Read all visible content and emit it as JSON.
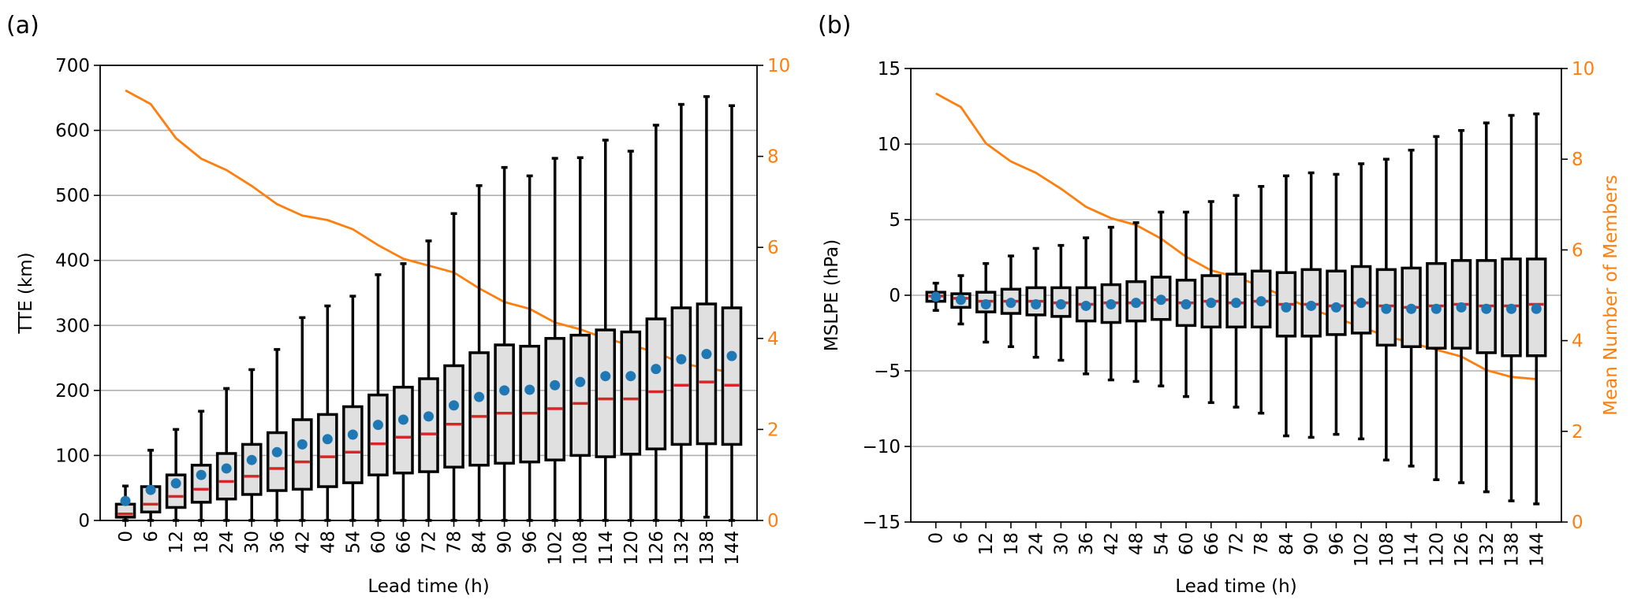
{
  "colors": {
    "box_fill": "#e0e0e0",
    "box_edge": "#000000",
    "median": "#d62728",
    "mean_marker": "#1f77b4",
    "members_line": "#ff7f0e",
    "grid": "#b0b0b0"
  },
  "chart_data": [
    {
      "type": "box",
      "panel_label": "(a)",
      "xlabel": "Lead time (h)",
      "ylabel": "TTE (km)",
      "y2label": "",
      "ylim": [
        0,
        700
      ],
      "yticks": [
        0,
        100,
        200,
        300,
        400,
        500,
        600,
        700
      ],
      "y2lim": [
        0,
        10
      ],
      "y2ticks": [
        0,
        2,
        4,
        6,
        8,
        10
      ],
      "grid": "horizontal",
      "categories": [
        "0",
        "6",
        "12",
        "18",
        "24",
        "30",
        "36",
        "42",
        "48",
        "54",
        "60",
        "66",
        "72",
        "78",
        "84",
        "90",
        "96",
        "102",
        "108",
        "114",
        "120",
        "126",
        "132",
        "138",
        "144"
      ],
      "whisker_low": [
        0,
        0,
        0,
        0,
        0,
        0,
        0,
        0,
        0,
        0,
        0,
        0,
        0,
        0,
        0,
        0,
        0,
        0,
        0,
        0,
        0,
        0,
        0,
        5,
        0
      ],
      "q1": [
        5,
        13,
        20,
        28,
        33,
        40,
        46,
        48,
        52,
        58,
        70,
        73,
        75,
        82,
        85,
        88,
        90,
        93,
        100,
        98,
        102,
        110,
        117,
        118,
        117
      ],
      "median": [
        10,
        25,
        37,
        48,
        60,
        68,
        80,
        90,
        98,
        105,
        118,
        128,
        133,
        148,
        160,
        165,
        165,
        172,
        180,
        187,
        187,
        198,
        208,
        213,
        208
      ],
      "q3": [
        25,
        52,
        70,
        85,
        103,
        117,
        135,
        155,
        163,
        175,
        193,
        205,
        218,
        238,
        258,
        270,
        268,
        280,
        285,
        293,
        290,
        310,
        327,
        333,
        327
      ],
      "whisker_high": [
        53,
        108,
        140,
        168,
        203,
        232,
        263,
        312,
        330,
        345,
        378,
        395,
        430,
        472,
        515,
        543,
        530,
        557,
        558,
        585,
        568,
        608,
        640,
        652,
        638
      ],
      "mean": [
        30,
        47,
        57,
        70,
        80,
        93,
        105,
        117,
        125,
        132,
        147,
        155,
        160,
        177,
        190,
        200,
        201,
        208,
        213,
        222,
        222,
        233,
        248,
        256,
        253
      ],
      "members": [
        9.45,
        9.15,
        8.4,
        7.95,
        7.7,
        7.35,
        6.95,
        6.7,
        6.6,
        6.4,
        6.05,
        5.75,
        5.6,
        5.45,
        5.1,
        4.8,
        4.65,
        4.35,
        4.2,
        4.0,
        3.85,
        3.7,
        3.45,
        3.35,
        3.25
      ]
    },
    {
      "type": "box",
      "panel_label": "(b)",
      "xlabel": "Lead time (h)",
      "ylabel": "MSLPE (hPa)",
      "y2label": "Mean Number of Members",
      "ylim": [
        -15,
        15
      ],
      "yticks": [
        -15,
        -10,
        -5,
        0,
        5,
        10,
        15
      ],
      "y2lim": [
        0,
        10
      ],
      "y2ticks": [
        0,
        2,
        4,
        6,
        8,
        10
      ],
      "grid": "horizontal",
      "categories": [
        "0",
        "6",
        "12",
        "18",
        "24",
        "30",
        "36",
        "42",
        "48",
        "54",
        "60",
        "66",
        "72",
        "78",
        "84",
        "90",
        "96",
        "102",
        "108",
        "114",
        "120",
        "126",
        "132",
        "138",
        "144"
      ],
      "whisker_low": [
        -1.0,
        -1.9,
        -3.1,
        -3.4,
        -4.1,
        -4.3,
        -5.2,
        -5.6,
        -5.7,
        -6.0,
        -6.7,
        -7.1,
        -7.4,
        -7.8,
        -9.3,
        -9.4,
        -9.2,
        -9.5,
        -10.9,
        -11.3,
        -12.2,
        -12.4,
        -13.0,
        -13.6,
        -13.8
      ],
      "q1": [
        -0.4,
        -0.8,
        -1.1,
        -1.2,
        -1.3,
        -1.4,
        -1.7,
        -1.8,
        -1.7,
        -1.6,
        -2.0,
        -2.1,
        -2.1,
        -2.1,
        -2.7,
        -2.7,
        -2.6,
        -2.5,
        -3.3,
        -3.4,
        -3.5,
        -3.5,
        -3.8,
        -4.0,
        -4.0
      ],
      "median": [
        -0.05,
        -0.2,
        -0.4,
        -0.4,
        -0.4,
        -0.5,
        -0.6,
        -0.5,
        -0.5,
        -0.3,
        -0.5,
        -0.4,
        -0.5,
        -0.4,
        -0.6,
        -0.6,
        -0.7,
        -0.5,
        -0.7,
        -0.8,
        -0.7,
        -0.6,
        -0.7,
        -0.7,
        -0.6
      ],
      "q3": [
        0.2,
        0.1,
        0.2,
        0.4,
        0.5,
        0.5,
        0.5,
        0.7,
        0.9,
        1.2,
        1.0,
        1.3,
        1.4,
        1.6,
        1.5,
        1.7,
        1.6,
        1.9,
        1.7,
        1.8,
        2.1,
        2.3,
        2.3,
        2.4,
        2.4
      ],
      "whisker_high": [
        0.8,
        1.3,
        2.1,
        2.6,
        3.1,
        3.3,
        3.8,
        4.5,
        4.8,
        5.5,
        5.5,
        6.2,
        6.6,
        7.2,
        7.9,
        8.1,
        8.0,
        8.7,
        9.0,
        9.6,
        10.5,
        10.9,
        11.4,
        11.9,
        12.0
      ],
      "mean": [
        -0.1,
        -0.3,
        -0.6,
        -0.5,
        -0.6,
        -0.6,
        -0.7,
        -0.6,
        -0.5,
        -0.3,
        -0.6,
        -0.5,
        -0.5,
        -0.4,
        -0.8,
        -0.7,
        -0.8,
        -0.5,
        -0.9,
        -0.9,
        -0.9,
        -0.8,
        -0.9,
        -0.9,
        -0.9
      ],
      "members": [
        9.45,
        9.15,
        8.35,
        7.95,
        7.7,
        7.35,
        6.95,
        6.7,
        6.55,
        6.25,
        5.85,
        5.55,
        5.4,
        5.2,
        4.95,
        4.7,
        4.5,
        4.3,
        4.1,
        3.95,
        3.8,
        3.65,
        3.35,
        3.2,
        3.15
      ]
    }
  ]
}
